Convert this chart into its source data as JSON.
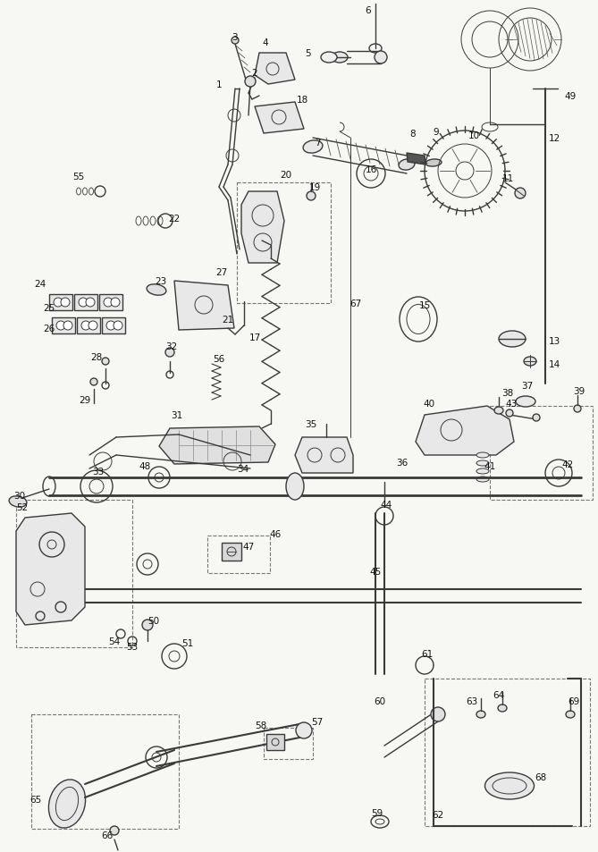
{
  "background_color": "#f7f7f3",
  "line_color": "#3a3a3a",
  "label_color": "#111111",
  "fig_width": 6.69,
  "fig_height": 9.54,
  "dpi": 100
}
